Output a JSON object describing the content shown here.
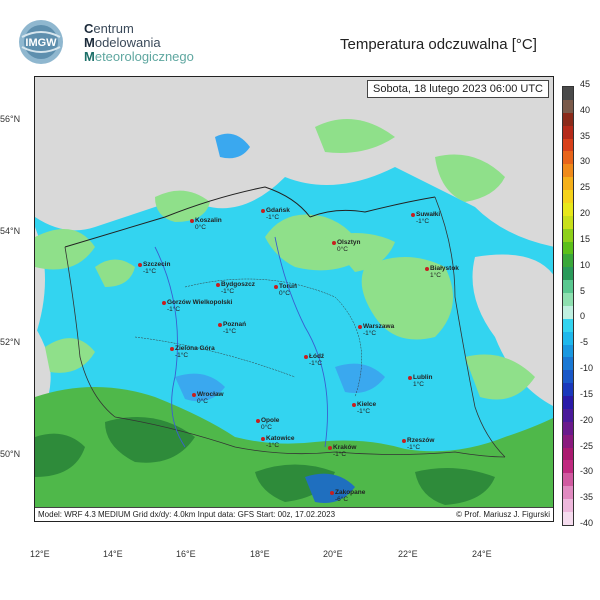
{
  "header": {
    "logo_text": "IMGW",
    "org_line1_initial": "C",
    "org_line1_rest": "entrum",
    "org_line2_initial": "M",
    "org_line2_rest": "odelowania",
    "org_line3_initial": "M",
    "org_line3_rest": "eteorologicznego",
    "title": "Temperatura odczuwalna [°C]"
  },
  "map": {
    "date": "Sobota, 18 lutego 2023 06:00 UTC",
    "footer_left": "Model: WRF 4.3 MEDIUM   Grid dx/dy: 4.0km   Input data: GFS   Start: 00z, 17.02.2023",
    "footer_right": "© Prof. Mariusz J. Figurski",
    "colors": {
      "sea_land_gray": "#d9d9d9",
      "cyan": "#33d4f0",
      "green_light": "#8fe08a",
      "green": "#4fb84a",
      "green_dark": "#2e8b3a",
      "blue": "#3aa8ef"
    }
  },
  "cities": [
    {
      "name": "Gdańsk",
      "temp": "-1°C"
    },
    {
      "name": "Koszalin",
      "temp": "0°C"
    },
    {
      "name": "Suwałki",
      "temp": "-1°C"
    },
    {
      "name": "Szczecin",
      "temp": "-1°C"
    },
    {
      "name": "Olsztyn",
      "temp": "0°C"
    },
    {
      "name": "Białystok",
      "temp": "1°C"
    },
    {
      "name": "Bydgoszcz",
      "temp": "-1°C"
    },
    {
      "name": "Toruń",
      "temp": "0°C"
    },
    {
      "name": "Gorzów Wielkopolski",
      "temp": "-1°C"
    },
    {
      "name": "Poznań",
      "temp": "-1°C"
    },
    {
      "name": "Warszawa",
      "temp": "-1°C"
    },
    {
      "name": "Zielona Góra",
      "temp": "-1°C"
    },
    {
      "name": "Łódź",
      "temp": "-1°C"
    },
    {
      "name": "Lublin",
      "temp": "1°C"
    },
    {
      "name": "Wrocław",
      "temp": "0°C"
    },
    {
      "name": "Kielce",
      "temp": "-1°C"
    },
    {
      "name": "Opole",
      "temp": "0°C"
    },
    {
      "name": "Katowice",
      "temp": "-1°C"
    },
    {
      "name": "Kraków",
      "temp": "-1°C"
    },
    {
      "name": "Rzeszów",
      "temp": "-1°C"
    },
    {
      "name": "Zakopane",
      "temp": "-6°C"
    }
  ],
  "axes": {
    "lat_labels": [
      "56°N",
      "54°N",
      "52°N",
      "50°N"
    ],
    "lon_labels": [
      "12°E",
      "14°E",
      "16°E",
      "18°E",
      "20°E",
      "22°E",
      "24°E"
    ]
  },
  "scale": {
    "labels": [
      "45",
      "40",
      "35",
      "30",
      "25",
      "20",
      "15",
      "10",
      "5",
      "0",
      "-5",
      "-10",
      "-15",
      "-20",
      "-25",
      "-30",
      "-35",
      "-40"
    ],
    "colors": [
      "#4a4a4a",
      "#7a5a4a",
      "#8b2a1a",
      "#b52a1a",
      "#d8401a",
      "#e8641a",
      "#f08a1a",
      "#f5b01a",
      "#f5d21a",
      "#e8e81a",
      "#c8e01a",
      "#8ed01a",
      "#5cc01a",
      "#3aa83a",
      "#2a9a5a",
      "#5ac890",
      "#8ee0b0",
      "#bff0e0",
      "#33d4f0",
      "#1fb8ec",
      "#1a98e0",
      "#1a78d4",
      "#1a58c8",
      "#1a38bc",
      "#2a1aa8",
      "#4a1a9a",
      "#6a1a8c",
      "#8a1a7e",
      "#aa1a70",
      "#c02a80",
      "#d05aa0",
      "#e08ac0",
      "#eeb8dc",
      "#f5dcee"
    ]
  }
}
